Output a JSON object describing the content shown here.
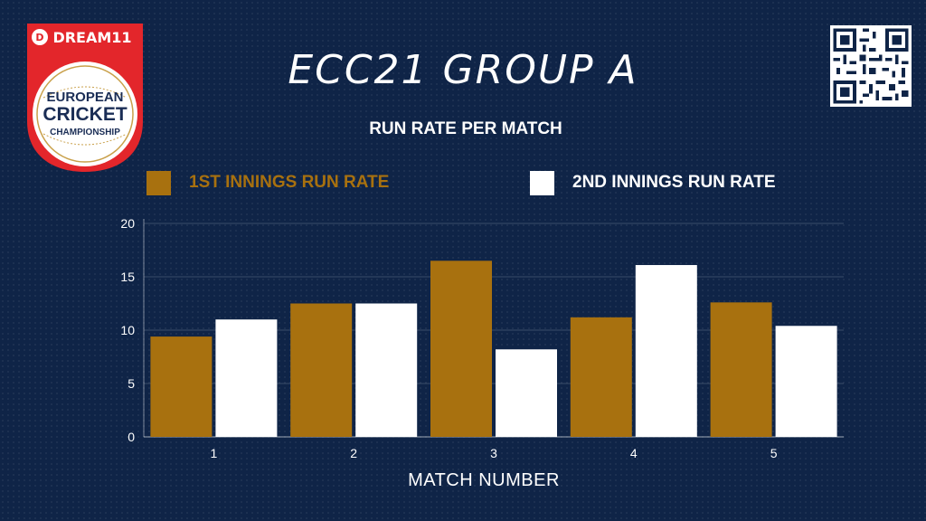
{
  "logo": {
    "brand": "DREAM11",
    "line1": "EUROPEAN",
    "line2": "CRICKET",
    "line3": "CHAMPIONSHIP"
  },
  "qr_icon": "qr-code-icon",
  "colors": {
    "background": "#0f2447",
    "series1": "#a8710f",
    "series2": "#ffffff",
    "logo_red": "#e3262b"
  },
  "header": {
    "title": "ECC21 GROUP A",
    "subtitle": "RUN RATE PER MATCH"
  },
  "chart_data": {
    "type": "bar",
    "categories": [
      "1",
      "2",
      "3",
      "4",
      "5"
    ],
    "series": [
      {
        "name": "1ST INNINGS RUN RATE",
        "color": "#a8710f",
        "values": [
          9.4,
          12.5,
          16.5,
          11.2,
          12.6
        ]
      },
      {
        "name": "2ND INNINGS RUN RATE",
        "color": "#ffffff",
        "values": [
          11.0,
          12.5,
          8.2,
          16.1,
          10.4
        ]
      }
    ],
    "yticks": [
      "0",
      "5",
      "10",
      "15",
      "20"
    ],
    "ylim": [
      0,
      20
    ],
    "xlabel": "MATCH NUMBER",
    "ylabel": "",
    "grid": true,
    "legend_position": "top"
  }
}
